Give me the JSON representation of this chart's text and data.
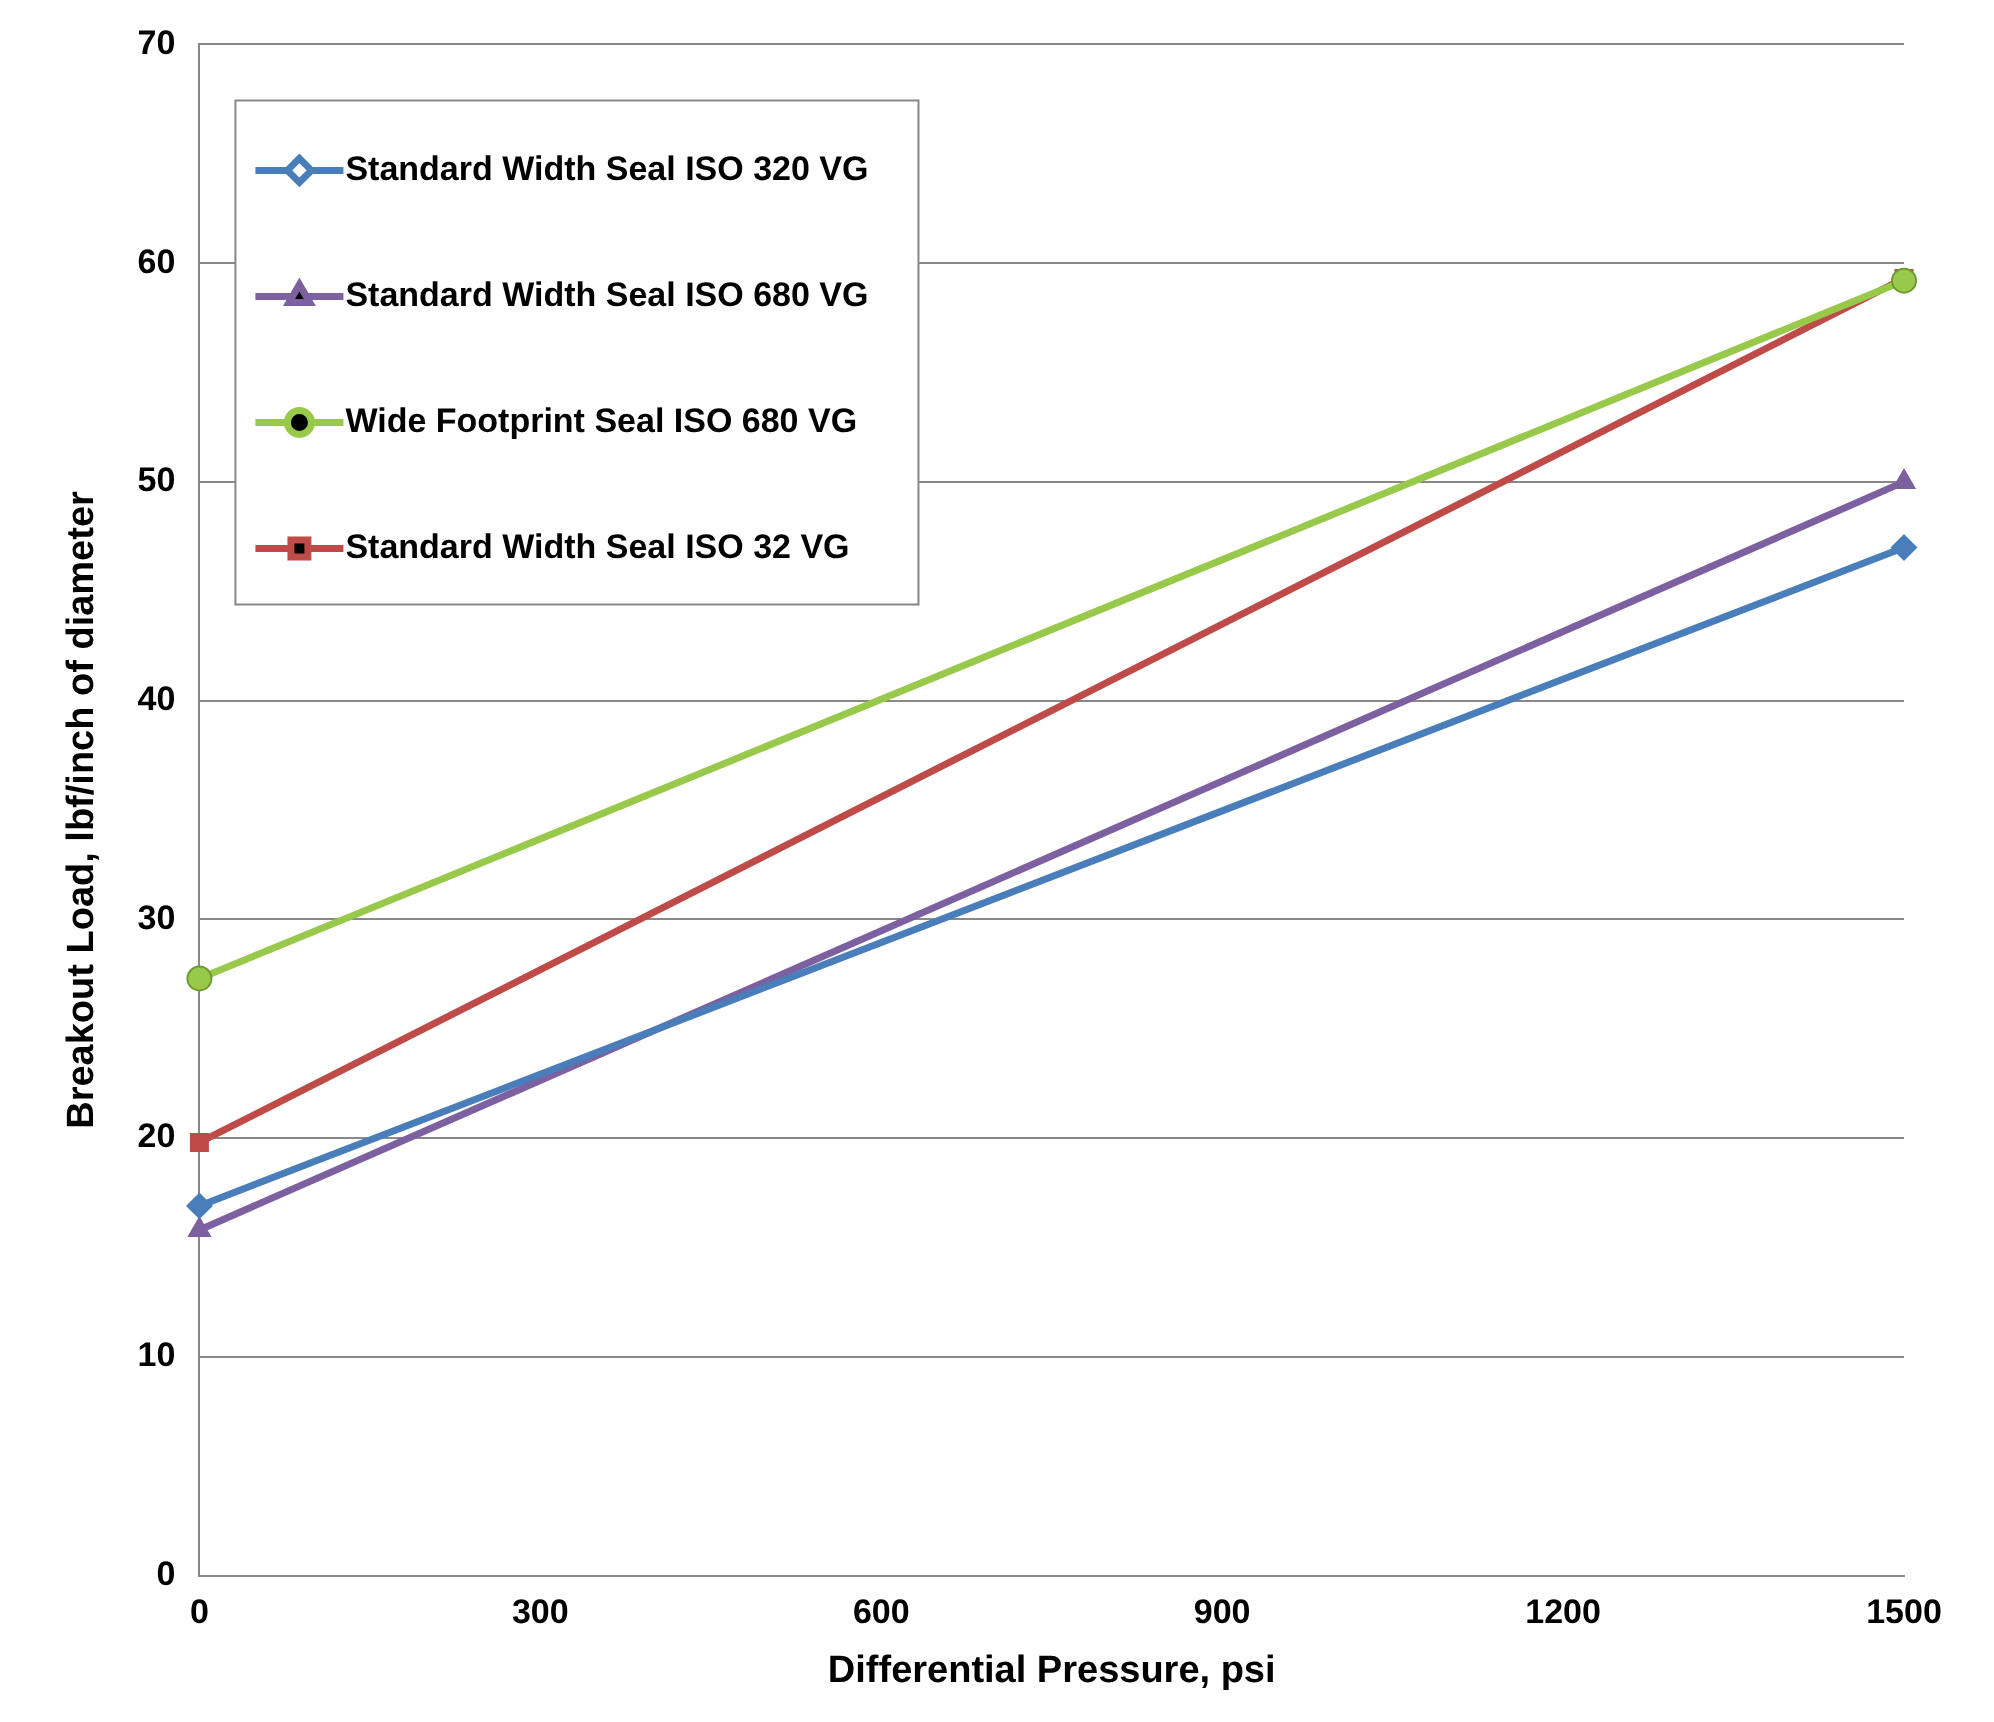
{
  "chart_data": {
    "type": "line",
    "xlabel": "Differential Pressure, psi",
    "ylabel": "Breakout Load, lbf/inch of diameter",
    "x": [
      0,
      1500
    ],
    "xlim": [
      0,
      1500
    ],
    "xticks": [
      0,
      300,
      600,
      900,
      1200,
      1500
    ],
    "ylim": [
      0,
      70
    ],
    "yticks": [
      0,
      10,
      20,
      30,
      40,
      50,
      60,
      70
    ],
    "grid": "y",
    "legend": "top left",
    "line_style": "solid",
    "series": [
      {
        "name": "Standard Width Seal ISO 320 VG",
        "color": "#4a7ebb",
        "marker": "diamond",
        "values": [
          16.9,
          47
        ]
      },
      {
        "name": "Standard Width Seal ISO 680 VG",
        "color": "#7d60a0",
        "marker": "triangle",
        "values": [
          15.8,
          50
        ]
      },
      {
        "name": "Wide Footprint Seal ISO 680 VG",
        "color": "#98c94a",
        "marker": "circle",
        "values": [
          27.3,
          59.2
        ]
      },
      {
        "name": "Standard Width Seal ISO 32 VG",
        "color": "#be4b48",
        "marker": "square",
        "values": [
          19.8,
          59.3
        ]
      }
    ]
  }
}
